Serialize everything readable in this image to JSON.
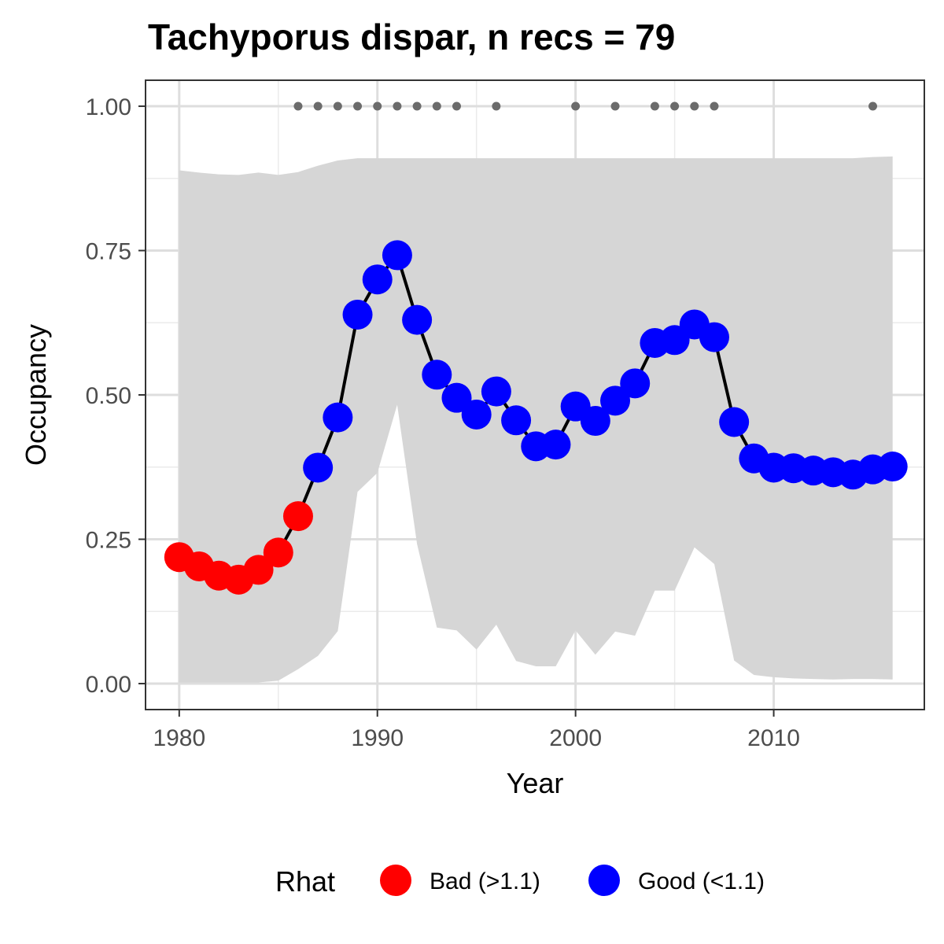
{
  "chart_data": {
    "type": "line",
    "title": "Tachyporus dispar, n recs = 79",
    "xlabel": "Year",
    "ylabel": "Occupancy",
    "xlim": [
      1978.3,
      2017.6
    ],
    "ylim": [
      -0.045,
      1.045
    ],
    "x_ticks": [
      1980,
      1990,
      2000,
      2010
    ],
    "x_tick_labels": [
      "1980",
      "1990",
      "2000",
      "2010"
    ],
    "y_ticks": [
      0,
      0.25,
      0.5,
      0.75,
      1
    ],
    "y_tick_labels": [
      "0.00",
      "0.25",
      "0.50",
      "0.75",
      "1.00"
    ],
    "grid": true,
    "legend": {
      "position": "bottom",
      "title": "Rhat",
      "entries": [
        {
          "label": "Bad (>1.1)",
          "color": "#ff0000"
        },
        {
          "label": "Good (<1.1)",
          "color": "#0000ff"
        }
      ]
    },
    "colors": {
      "bad": "#ff0000",
      "good": "#0000ff",
      "line": "#000000",
      "ribbon": "#d6d6d6",
      "record_dots": "#6b6b6b"
    },
    "x": [
      1980,
      1981,
      1982,
      1983,
      1984,
      1985,
      1986,
      1987,
      1988,
      1989,
      1990,
      1991,
      1992,
      1993,
      1994,
      1995,
      1996,
      1997,
      1998,
      1999,
      2000,
      2001,
      2002,
      2003,
      2004,
      2005,
      2006,
      2007,
      2008,
      2009,
      2010,
      2011,
      2012,
      2013,
      2014,
      2015,
      2016
    ],
    "values": [
      0.219,
      0.203,
      0.187,
      0.18,
      0.197,
      0.227,
      0.29,
      0.374,
      0.461,
      0.639,
      0.7,
      0.742,
      0.63,
      0.535,
      0.495,
      0.466,
      0.506,
      0.456,
      0.411,
      0.414,
      0.48,
      0.455,
      0.49,
      0.52,
      0.59,
      0.595,
      0.622,
      0.6,
      0.453,
      0.39,
      0.374,
      0.373,
      0.369,
      0.366,
      0.362,
      0.371,
      0.376
    ],
    "rhat": [
      "Bad",
      "Bad",
      "Bad",
      "Bad",
      "Bad",
      "Bad",
      "Bad",
      "Good",
      "Good",
      "Good",
      "Good",
      "Good",
      "Good",
      "Good",
      "Good",
      "Good",
      "Good",
      "Good",
      "Good",
      "Good",
      "Good",
      "Good",
      "Good",
      "Good",
      "Good",
      "Good",
      "Good",
      "Good",
      "Good",
      "Good",
      "Good",
      "Good",
      "Good",
      "Good",
      "Good",
      "Good",
      "Good"
    ],
    "lower": [
      0.002,
      0.002,
      0.002,
      0.002,
      0.002,
      0.005,
      0.025,
      0.048,
      0.091,
      0.332,
      0.365,
      0.483,
      0.242,
      0.097,
      0.092,
      0.059,
      0.102,
      0.039,
      0.03,
      0.03,
      0.092,
      0.05,
      0.09,
      0.083,
      0.161,
      0.161,
      0.236,
      0.207,
      0.04,
      0.015,
      0.011,
      0.009,
      0.008,
      0.007,
      0.008,
      0.008,
      0.007
    ],
    "upper": [
      0.889,
      0.885,
      0.882,
      0.881,
      0.885,
      0.881,
      0.886,
      0.897,
      0.906,
      0.91,
      0.91,
      0.91,
      0.91,
      0.91,
      0.91,
      0.91,
      0.91,
      0.91,
      0.91,
      0.91,
      0.91,
      0.91,
      0.91,
      0.91,
      0.91,
      0.91,
      0.91,
      0.91,
      0.91,
      0.91,
      0.91,
      0.91,
      0.91,
      0.91,
      0.91,
      0.912,
      0.913
    ],
    "record_years": [
      1986,
      1987,
      1988,
      1989,
      1990,
      1991,
      1992,
      1993,
      1994,
      1996,
      2000,
      2002,
      2004,
      2005,
      2006,
      2007,
      2015
    ],
    "record_y": 1.0
  }
}
